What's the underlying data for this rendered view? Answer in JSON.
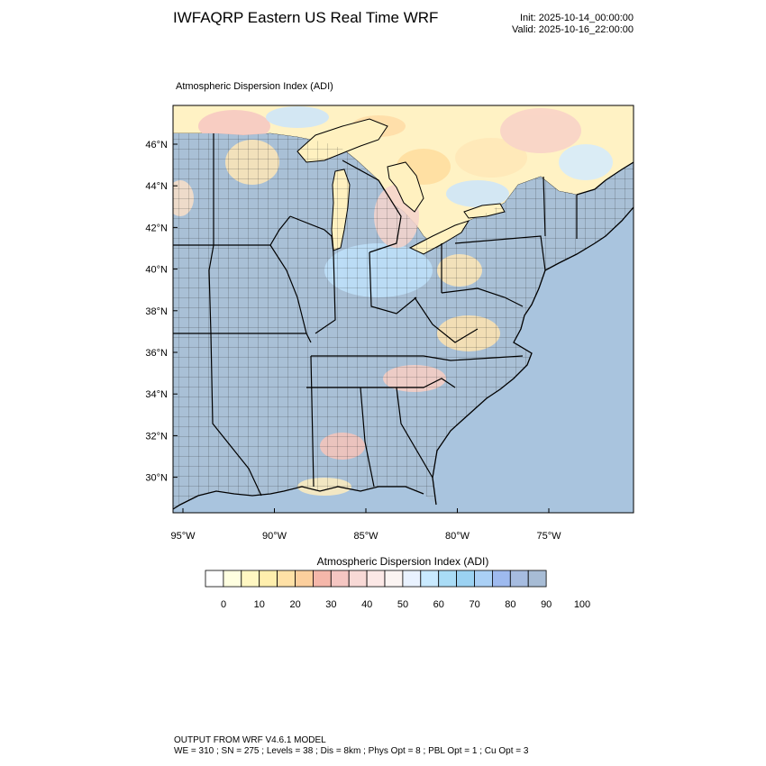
{
  "header": {
    "title": "IWFAQRP Eastern US Real Time WRF",
    "init": "Init: 2025-10-14_00:00:00",
    "valid": "Valid: 2025-10-16_22:00:00"
  },
  "plot": {
    "title": "Atmospheric Dispersion Index   (ADI)",
    "lat_ticks": [
      {
        "lat": 46,
        "label": "46°N"
      },
      {
        "lat": 44,
        "label": "44°N"
      },
      {
        "lat": 42,
        "label": "42°N"
      },
      {
        "lat": 40,
        "label": "40°N"
      },
      {
        "lat": 38,
        "label": "38°N"
      },
      {
        "lat": 36,
        "label": "36°N"
      },
      {
        "lat": 34,
        "label": "34°N"
      },
      {
        "lat": 32,
        "label": "32°N"
      },
      {
        "lat": 30,
        "label": "30°N"
      }
    ],
    "lon_ticks": [
      {
        "lon": -95,
        "label": "95°W"
      },
      {
        "lon": -90,
        "label": "90°W"
      },
      {
        "lon": -85,
        "label": "85°W"
      },
      {
        "lon": -80,
        "label": "80°W"
      },
      {
        "lon": -75,
        "label": "75°W"
      }
    ],
    "colors": {
      "ocean": "#a9c4de",
      "land_base": "#a9c0d6",
      "canada_base": "#fff2c4",
      "border": "#000000"
    }
  },
  "colorbar": {
    "title": "Atmospheric Dispersion Index  (ADI)",
    "colors": [
      "#ffffff",
      "#ffffe0",
      "#fff7c2",
      "#ffefad",
      "#ffe1a6",
      "#fccf9d",
      "#f5b7aa",
      "#f5c6c2",
      "#f8d9d6",
      "#fce8e6",
      "#fbf4f2",
      "#e9f2ff",
      "#c9eaff",
      "#a9dcf6",
      "#9bd2f2",
      "#aad0f5",
      "#9ebaef",
      "#a6bce0",
      "#a7bcd5"
    ],
    "ticks": [
      "0",
      "10",
      "20",
      "30",
      "40",
      "50",
      "60",
      "70",
      "80",
      "90",
      "100"
    ]
  },
  "footer": {
    "model": "OUTPUT FROM WRF V4.6.1 MODEL",
    "params": "WE = 310 ; SN = 275 ; Levels = 38 ; Dis = 8km ; Phys Opt = 8 ; PBL Opt = 1 ; Cu Opt = 3"
  }
}
